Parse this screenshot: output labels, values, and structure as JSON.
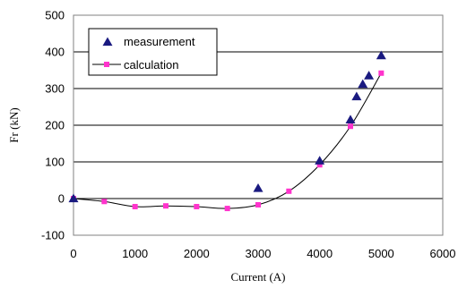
{
  "chart_data": {
    "type": "scatter",
    "xlabel": "Current (A)",
    "ylabel": "Fr (kN)",
    "xlim": [
      0,
      6000
    ],
    "ylim": [
      -100,
      500
    ],
    "xticks": [
      0,
      1000,
      2000,
      3000,
      4000,
      5000,
      6000
    ],
    "yticks": [
      -100,
      0,
      100,
      200,
      300,
      400,
      500
    ],
    "grid": "horizontal",
    "legend_position": "top-left",
    "series": [
      {
        "name": "measurement",
        "marker": "triangle",
        "color": "#1a1a80",
        "points": [
          {
            "x": 0,
            "y": 0
          },
          {
            "x": 3000,
            "y": 28
          },
          {
            "x": 4000,
            "y": 103
          },
          {
            "x": 4500,
            "y": 215
          },
          {
            "x": 4600,
            "y": 278
          },
          {
            "x": 4700,
            "y": 312
          },
          {
            "x": 4800,
            "y": 335
          },
          {
            "x": 5000,
            "y": 390
          }
        ]
      },
      {
        "name": "calculation",
        "marker": "square",
        "color": "#ff33cc",
        "line_color": "#000000",
        "points": [
          {
            "x": 0,
            "y": 0
          },
          {
            "x": 500,
            "y": -8
          },
          {
            "x": 1000,
            "y": -22
          },
          {
            "x": 1500,
            "y": -20
          },
          {
            "x": 2000,
            "y": -22
          },
          {
            "x": 2500,
            "y": -27
          },
          {
            "x": 3000,
            "y": -17
          },
          {
            "x": 3500,
            "y": 20
          },
          {
            "x": 4000,
            "y": 92
          },
          {
            "x": 4500,
            "y": 197
          },
          {
            "x": 5000,
            "y": 342
          }
        ]
      }
    ]
  }
}
